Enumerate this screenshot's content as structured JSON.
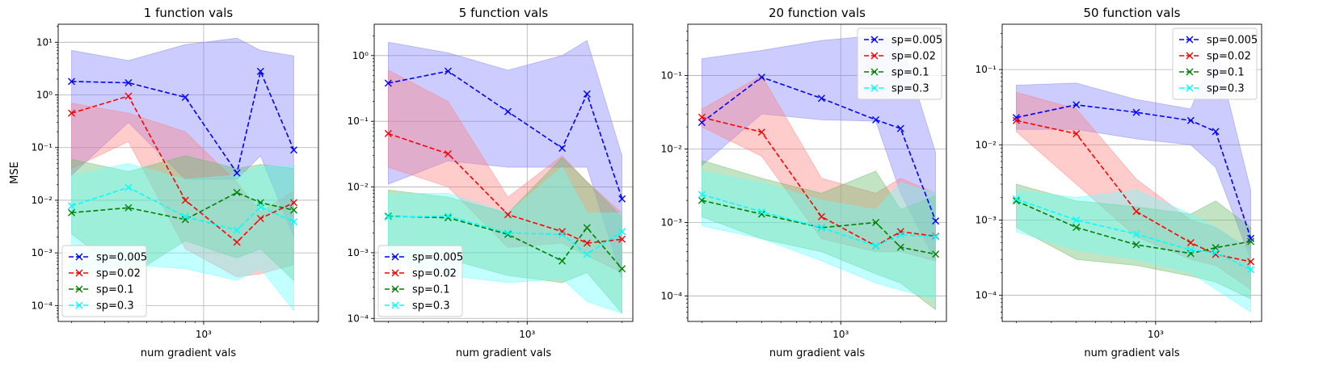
{
  "chart_data": [
    {
      "type": "line",
      "title": "1 function vals",
      "xlabel": "num gradient vals",
      "ylabel": "MSE",
      "xscale": "log",
      "yscale": "log",
      "xlim": [
        170,
        4050
      ],
      "ylim": [
        5e-05,
        22
      ],
      "yticks": [
        0.0001,
        0.001,
        0.01,
        0.1,
        1,
        10
      ],
      "ytick_labels": [
        "10⁻⁴",
        "10⁻³",
        "10⁻²",
        "10⁻¹",
        "10⁰",
        "10¹"
      ],
      "xticks": [
        1000
      ],
      "xtick_labels": [
        "10³"
      ],
      "grid": true,
      "legend_position": "lower-left",
      "x": [
        200,
        400,
        800,
        1500,
        2000,
        3000
      ],
      "series": [
        {
          "name": "sp=0.005",
          "color": "#0000ff",
          "fill": "#8080ff",
          "values": [
            1.8,
            1.7,
            0.9,
            0.033,
            2.8,
            0.09
          ],
          "lower": [
            0.03,
            0.3,
            0.025,
            0.025,
            0.07,
            0.002
          ],
          "upper": [
            7.0,
            4.5,
            9.0,
            12.0,
            7.0,
            5.5
          ]
        },
        {
          "name": "sp=0.02",
          "color": "#ff0000",
          "fill": "#ff8080",
          "values": [
            0.45,
            0.95,
            0.01,
            0.0016,
            0.0045,
            0.009
          ],
          "lower": [
            0.04,
            0.13,
            0.0012,
            0.00035,
            0.0004,
            0.0006
          ],
          "upper": [
            0.7,
            0.45,
            0.2,
            0.022,
            0.006,
            0.015
          ]
        },
        {
          "name": "sp=0.1",
          "color": "#008000",
          "fill": "#66bb66",
          "values": [
            0.0058,
            0.0072,
            0.0043,
            0.014,
            0.009,
            0.0065
          ],
          "lower": [
            0.0023,
            0.00035,
            0.0017,
            0.0008,
            0.0012,
            0.0003
          ],
          "upper": [
            0.06,
            0.035,
            0.07,
            0.04,
            0.048,
            0.04
          ]
        },
        {
          "name": "sp=0.3",
          "color": "#00ffff",
          "fill": "#66ffff",
          "values": [
            0.0078,
            0.0175,
            0.0049,
            0.0027,
            0.0075,
            0.0039
          ],
          "lower": [
            0.00035,
            0.0006,
            0.0005,
            0.0003,
            0.0005,
            8e-05
          ],
          "upper": [
            0.03,
            0.05,
            0.025,
            0.03,
            0.045,
            0.045
          ]
        }
      ]
    },
    {
      "type": "line",
      "title": "5 function vals",
      "xlabel": "num gradient vals",
      "ylabel": "",
      "xscale": "log",
      "yscale": "log",
      "xlim": [
        170,
        3400
      ],
      "ylim": [
        9e-05,
        3.0
      ],
      "yticks": [
        0.0001,
        0.001,
        0.01,
        0.1,
        1
      ],
      "ytick_labels": [
        "10⁻⁴",
        "10⁻³",
        "10⁻²",
        "10⁻¹",
        "10⁰"
      ],
      "xticks": [
        1000
      ],
      "xtick_labels": [
        "10³"
      ],
      "grid": true,
      "legend_position": "lower-left",
      "x": [
        200,
        400,
        800,
        1500,
        2000,
        3000
      ],
      "series": [
        {
          "name": "sp=0.005",
          "color": "#0000ff",
          "fill": "#8080ff",
          "values": [
            0.38,
            0.58,
            0.14,
            0.039,
            0.26,
            0.0066
          ],
          "lower": [
            0.011,
            0.025,
            0.02,
            0.02,
            0.02,
            0.0004
          ],
          "upper": [
            1.6,
            1.1,
            0.6,
            1.0,
            1.7,
            0.03
          ]
        },
        {
          "name": "sp=0.02",
          "color": "#ff0000",
          "fill": "#ff8080",
          "values": [
            0.065,
            0.032,
            0.0038,
            0.0021,
            0.0014,
            0.0016
          ],
          "lower": [
            0.02,
            0.01,
            0.0012,
            0.0014,
            0.0009,
            0.0005
          ],
          "upper": [
            0.6,
            0.2,
            0.007,
            0.03,
            0.012,
            0.004
          ]
        },
        {
          "name": "sp=0.1",
          "color": "#008000",
          "fill": "#66bb66",
          "values": [
            0.0036,
            0.0034,
            0.0019,
            0.00075,
            0.0024,
            0.00057
          ],
          "lower": [
            0.0009,
            0.0008,
            0.00045,
            0.00035,
            0.0005,
            0.00012
          ],
          "upper": [
            0.009,
            0.007,
            0.004,
            0.028,
            0.012,
            0.0035
          ]
        },
        {
          "name": "sp=0.3",
          "color": "#00ffff",
          "fill": "#66ffff",
          "values": [
            0.0035,
            0.0036,
            0.002,
            0.0019,
            0.00095,
            0.0021
          ],
          "lower": [
            0.0008,
            0.00045,
            0.00035,
            0.0004,
            0.00018,
            0.00012
          ],
          "upper": [
            0.008,
            0.008,
            0.004,
            0.02,
            0.004,
            0.004
          ]
        }
      ]
    },
    {
      "type": "line",
      "title": "20 function vals",
      "xlabel": "num gradient vals",
      "ylabel": "",
      "xscale": "log",
      "yscale": "log",
      "xlim": [
        170,
        3400
      ],
      "ylim": [
        4.5e-05,
        0.5
      ],
      "yticks": [
        0.0001,
        0.001,
        0.01,
        0.1
      ],
      "ytick_labels": [
        "10⁻⁴",
        "10⁻³",
        "10⁻²",
        "10⁻¹"
      ],
      "xticks": [
        1000
      ],
      "xtick_labels": [
        "10³"
      ],
      "grid": true,
      "legend_position": "upper-right",
      "x": [
        200,
        400,
        800,
        1500,
        2000,
        3000
      ],
      "series": [
        {
          "name": "sp=0.005",
          "color": "#0000ff",
          "fill": "#8080ff",
          "values": [
            0.023,
            0.095,
            0.049,
            0.025,
            0.019,
            0.00105
          ],
          "lower": [
            0.006,
            0.03,
            0.025,
            0.024,
            0.0025,
            0.0003
          ],
          "upper": [
            0.17,
            0.22,
            0.3,
            0.35,
            0.3,
            0.009
          ]
        },
        {
          "name": "sp=0.02",
          "color": "#ff0000",
          "fill": "#ff8080",
          "values": [
            0.027,
            0.017,
            0.0012,
            0.00048,
            0.00075,
            0.00065
          ],
          "lower": [
            0.02,
            0.008,
            0.0006,
            0.0004,
            0.0004,
            0.0003
          ],
          "upper": [
            0.035,
            0.1,
            0.004,
            0.0025,
            0.004,
            0.0025
          ]
        },
        {
          "name": "sp=0.1",
          "color": "#008000",
          "fill": "#66bb66",
          "values": [
            0.002,
            0.0013,
            0.00085,
            0.001,
            0.00046,
            0.00037
          ],
          "lower": [
            0.0012,
            0.0006,
            0.0004,
            0.0002,
            0.00015,
            6.5e-05
          ],
          "upper": [
            0.007,
            0.004,
            0.0025,
            0.005,
            0.0015,
            0.0023
          ]
        },
        {
          "name": "sp=0.3",
          "color": "#00ffff",
          "fill": "#66ffff",
          "values": [
            0.0024,
            0.0014,
            0.00085,
            0.00048,
            0.00068,
            0.00064
          ],
          "lower": [
            0.0009,
            0.0006,
            0.0003,
            0.00015,
            0.00012,
            9e-05
          ],
          "upper": [
            0.005,
            0.0035,
            0.002,
            0.0015,
            0.0035,
            0.0025
          ]
        }
      ]
    },
    {
      "type": "line",
      "title": "50 function vals",
      "xlabel": "num gradient vals",
      "ylabel": "",
      "xscale": "log",
      "yscale": "log",
      "xlim": [
        170,
        3400
      ],
      "ylim": [
        4.5e-05,
        0.4
      ],
      "yticks": [
        0.0001,
        0.001,
        0.01,
        0.1
      ],
      "ytick_labels": [
        "10⁻⁴",
        "10⁻³",
        "10⁻²",
        "10⁻¹"
      ],
      "xticks": [
        1000
      ],
      "xtick_labels": [
        "10³"
      ],
      "grid": true,
      "legend_position": "upper-right",
      "x": [
        200,
        400,
        800,
        1500,
        2000,
        3000
      ],
      "series": [
        {
          "name": "sp=0.005",
          "color": "#0000ff",
          "fill": "#8080ff",
          "values": [
            0.023,
            0.034,
            0.027,
            0.021,
            0.015,
            0.00057
          ],
          "lower": [
            0.016,
            0.016,
            0.012,
            0.01,
            0.005,
            0.0003
          ],
          "upper": [
            0.062,
            0.066,
            0.04,
            0.03,
            0.19,
            0.0025
          ]
        },
        {
          "name": "sp=0.02",
          "color": "#ff0000",
          "fill": "#ff8080",
          "values": [
            0.021,
            0.014,
            0.0013,
            0.0005,
            0.00035,
            0.00028
          ],
          "lower": [
            0.015,
            0.003,
            0.0006,
            0.0003,
            0.00025,
            0.00012
          ],
          "upper": [
            0.05,
            0.03,
            0.0035,
            0.001,
            0.0008,
            0.0004
          ]
        },
        {
          "name": "sp=0.1",
          "color": "#008000",
          "fill": "#66bb66",
          "values": [
            0.0018,
            0.0008,
            0.00047,
            0.00036,
            0.00043,
            0.00052
          ],
          "lower": [
            0.0008,
            0.0003,
            0.00025,
            0.00018,
            0.00015,
            9e-05
          ],
          "upper": [
            0.003,
            0.0018,
            0.0015,
            0.0012,
            0.0018,
            0.0008
          ]
        },
        {
          "name": "sp=0.3",
          "color": "#00ffff",
          "fill": "#66ffff",
          "values": [
            0.0019,
            0.001,
            0.00065,
            0.0004,
            0.00037,
            0.00022
          ],
          "lower": [
            0.0007,
            0.0004,
            0.0003,
            0.0002,
            0.00012,
            6e-05
          ],
          "upper": [
            0.0025,
            0.002,
            0.0025,
            0.0012,
            0.0008,
            0.0004
          ]
        }
      ]
    }
  ]
}
